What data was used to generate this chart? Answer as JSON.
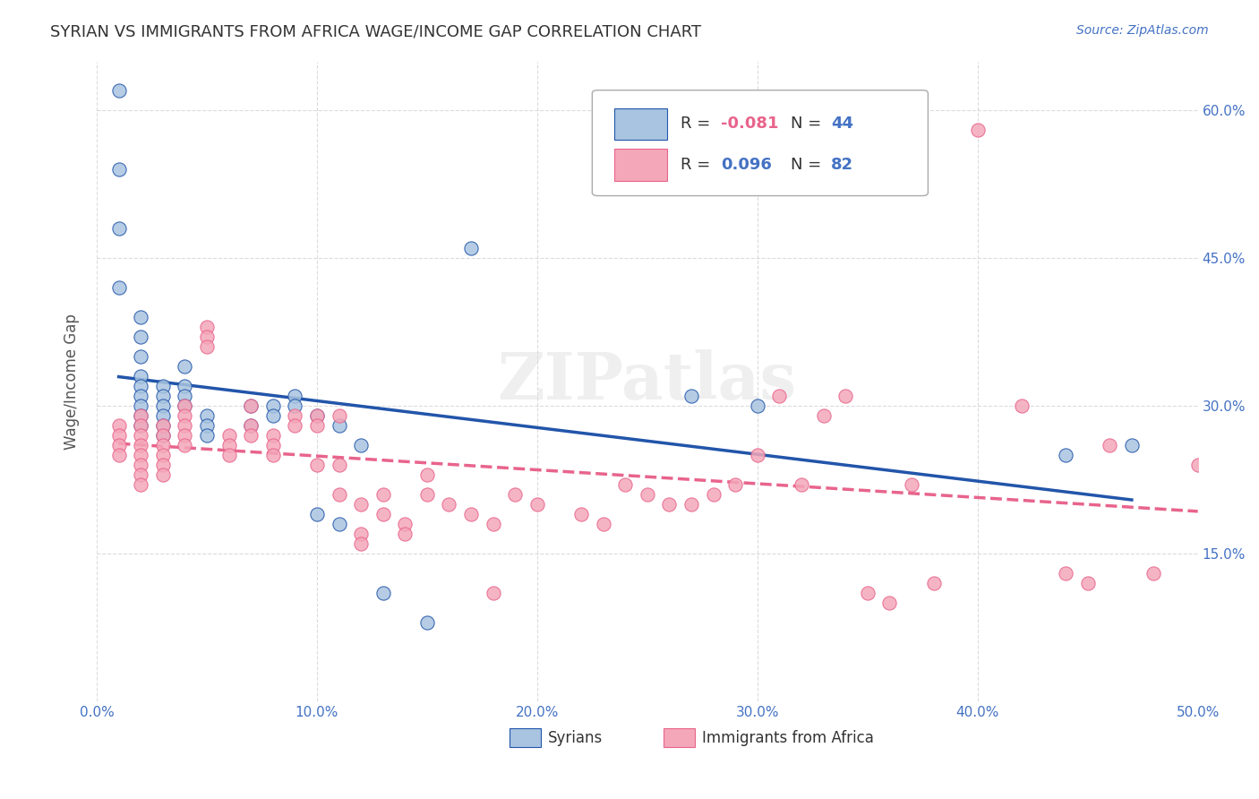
{
  "title": "SYRIAN VS IMMIGRANTS FROM AFRICA WAGE/INCOME GAP CORRELATION CHART",
  "source": "Source: ZipAtlas.com",
  "ylabel": "Wage/Income Gap",
  "yticks": [
    "60.0%",
    "45.0%",
    "30.0%",
    "15.0%"
  ],
  "ytick_vals": [
    0.6,
    0.45,
    0.3,
    0.15
  ],
  "xlim": [
    0.0,
    0.5
  ],
  "ylim": [
    0.0,
    0.65
  ],
  "legend_label1": "Syrians",
  "legend_label2": "Immigrants from Africa",
  "r1": "-0.081",
  "n1": "44",
  "r2": "0.096",
  "n2": "82",
  "color_syrian": "#a8c4e0",
  "color_africa": "#f4a7b9",
  "color_line_syrian": "#2255aa",
  "color_line_africa": "#e8648c",
  "color_text_blue": "#4472c4",
  "color_r_negative": "#e8648c",
  "watermark": "ZIPatlas",
  "background_color": "#ffffff",
  "grid_color": "#cccccc",
  "syrian_x": [
    0.01,
    0.01,
    0.01,
    0.01,
    0.02,
    0.02,
    0.02,
    0.02,
    0.02,
    0.02,
    0.02,
    0.02,
    0.02,
    0.03,
    0.03,
    0.03,
    0.03,
    0.03,
    0.03,
    0.04,
    0.04,
    0.04,
    0.04,
    0.05,
    0.05,
    0.05,
    0.07,
    0.07,
    0.08,
    0.08,
    0.09,
    0.09,
    0.1,
    0.1,
    0.11,
    0.11,
    0.12,
    0.13,
    0.15,
    0.17,
    0.27,
    0.3,
    0.44,
    0.47
  ],
  "syrian_y": [
    0.62,
    0.54,
    0.48,
    0.42,
    0.39,
    0.37,
    0.35,
    0.33,
    0.32,
    0.31,
    0.3,
    0.29,
    0.28,
    0.32,
    0.31,
    0.3,
    0.29,
    0.28,
    0.27,
    0.34,
    0.32,
    0.31,
    0.3,
    0.29,
    0.28,
    0.27,
    0.3,
    0.28,
    0.3,
    0.29,
    0.31,
    0.3,
    0.29,
    0.19,
    0.28,
    0.18,
    0.26,
    0.11,
    0.08,
    0.46,
    0.31,
    0.3,
    0.25,
    0.26
  ],
  "africa_x": [
    0.01,
    0.01,
    0.01,
    0.01,
    0.02,
    0.02,
    0.02,
    0.02,
    0.02,
    0.02,
    0.02,
    0.02,
    0.03,
    0.03,
    0.03,
    0.03,
    0.03,
    0.03,
    0.04,
    0.04,
    0.04,
    0.04,
    0.04,
    0.05,
    0.05,
    0.05,
    0.06,
    0.06,
    0.06,
    0.07,
    0.07,
    0.07,
    0.08,
    0.08,
    0.08,
    0.09,
    0.09,
    0.1,
    0.1,
    0.1,
    0.11,
    0.11,
    0.11,
    0.12,
    0.12,
    0.12,
    0.13,
    0.13,
    0.14,
    0.14,
    0.15,
    0.15,
    0.16,
    0.17,
    0.18,
    0.18,
    0.19,
    0.2,
    0.22,
    0.23,
    0.24,
    0.25,
    0.26,
    0.27,
    0.28,
    0.29,
    0.3,
    0.31,
    0.32,
    0.33,
    0.34,
    0.35,
    0.36,
    0.37,
    0.38,
    0.4,
    0.42,
    0.44,
    0.45,
    0.46,
    0.48,
    0.5
  ],
  "africa_y": [
    0.28,
    0.27,
    0.26,
    0.25,
    0.29,
    0.28,
    0.27,
    0.26,
    0.25,
    0.24,
    0.23,
    0.22,
    0.28,
    0.27,
    0.26,
    0.25,
    0.24,
    0.23,
    0.3,
    0.29,
    0.28,
    0.27,
    0.26,
    0.38,
    0.37,
    0.36,
    0.27,
    0.26,
    0.25,
    0.3,
    0.28,
    0.27,
    0.27,
    0.26,
    0.25,
    0.29,
    0.28,
    0.29,
    0.28,
    0.24,
    0.29,
    0.24,
    0.21,
    0.2,
    0.17,
    0.16,
    0.21,
    0.19,
    0.18,
    0.17,
    0.23,
    0.21,
    0.2,
    0.19,
    0.18,
    0.11,
    0.21,
    0.2,
    0.19,
    0.18,
    0.22,
    0.21,
    0.2,
    0.2,
    0.21,
    0.22,
    0.25,
    0.31,
    0.22,
    0.29,
    0.31,
    0.11,
    0.1,
    0.22,
    0.12,
    0.58,
    0.3,
    0.13,
    0.12,
    0.26,
    0.13,
    0.24
  ]
}
